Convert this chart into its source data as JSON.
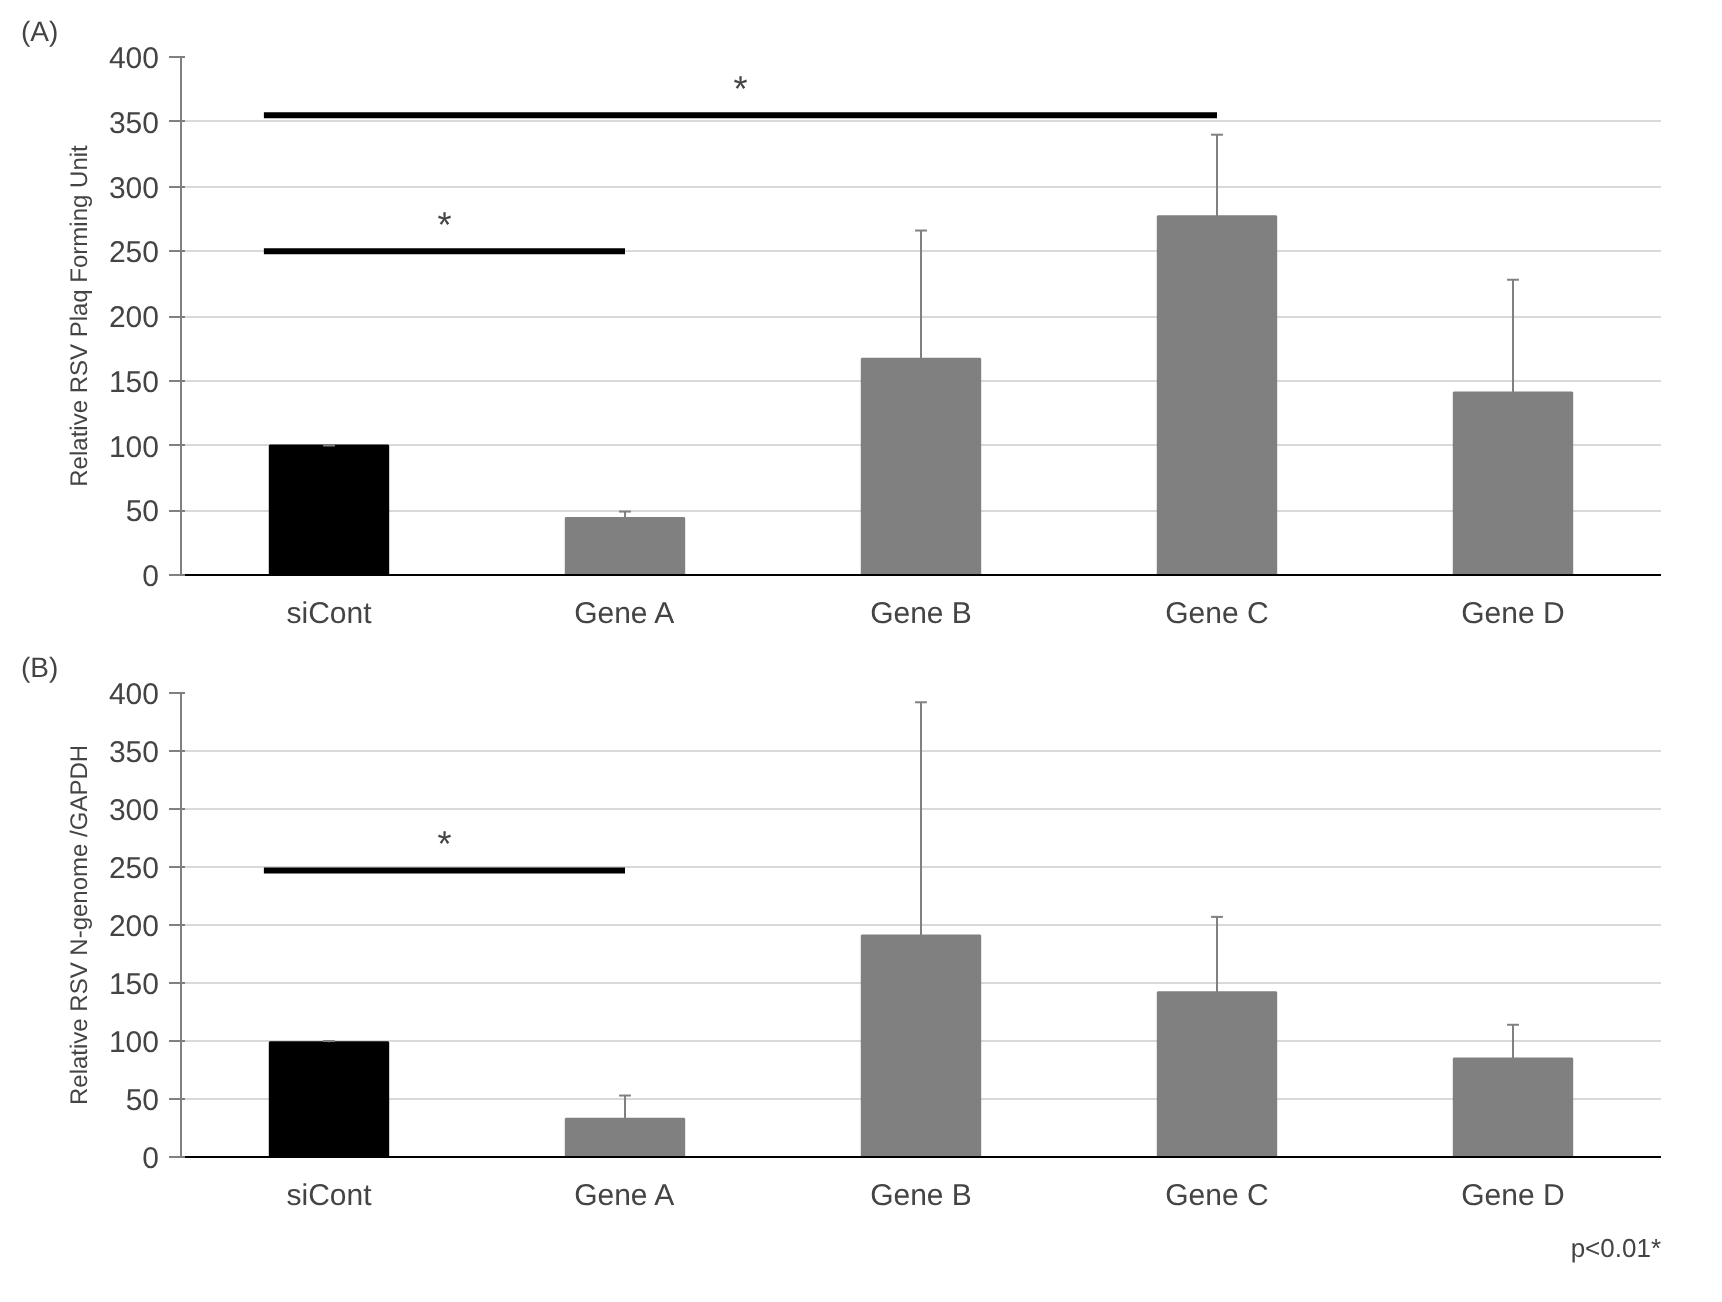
{
  "chart_data": [
    {
      "type": "bar",
      "ylabel": "Relative RSV Plaq Forming Unit",
      "categories": [
        "siCont",
        "Gene A",
        "Gene B",
        "Gene C",
        "Gene D"
      ],
      "values": [
        100,
        44,
        167,
        277,
        141
      ],
      "colors": [
        "#000000",
        "#808080",
        "#808080",
        "#808080",
        "#808080"
      ],
      "errors": [
        [
          100,
          100
        ],
        [
          44,
          49
        ],
        [
          167,
          266
        ],
        [
          277,
          340
        ],
        [
          141,
          228
        ]
      ],
      "ylim": [
        0,
        400
      ],
      "yticks": [
        0,
        50,
        100,
        150,
        200,
        250,
        300,
        350,
        400
      ],
      "grid": "y",
      "annotations": [
        "(A)",
        "*",
        "*"
      ]
    },
    {
      "type": "bar",
      "ylabel": "Relative RSV N-genome /GAPDH",
      "categories": [
        "siCont",
        "Gene A",
        "Gene B",
        "Gene C",
        "Gene D"
      ],
      "values": [
        99,
        33,
        191,
        142,
        85
      ],
      "colors": [
        "#000000",
        "#808080",
        "#808080",
        "#808080",
        "#808080"
      ],
      "errors": [
        [
          99,
          100
        ],
        [
          33,
          53
        ],
        [
          191,
          392
        ],
        [
          142,
          207
        ],
        [
          85,
          114
        ]
      ],
      "ylim": [
        0,
        400
      ],
      "yticks": [
        0,
        50,
        100,
        150,
        200,
        250,
        300,
        350,
        400
      ],
      "grid": "y",
      "annotations": [
        "(B)",
        "*",
        "p<0.01*"
      ]
    }
  ]
}
